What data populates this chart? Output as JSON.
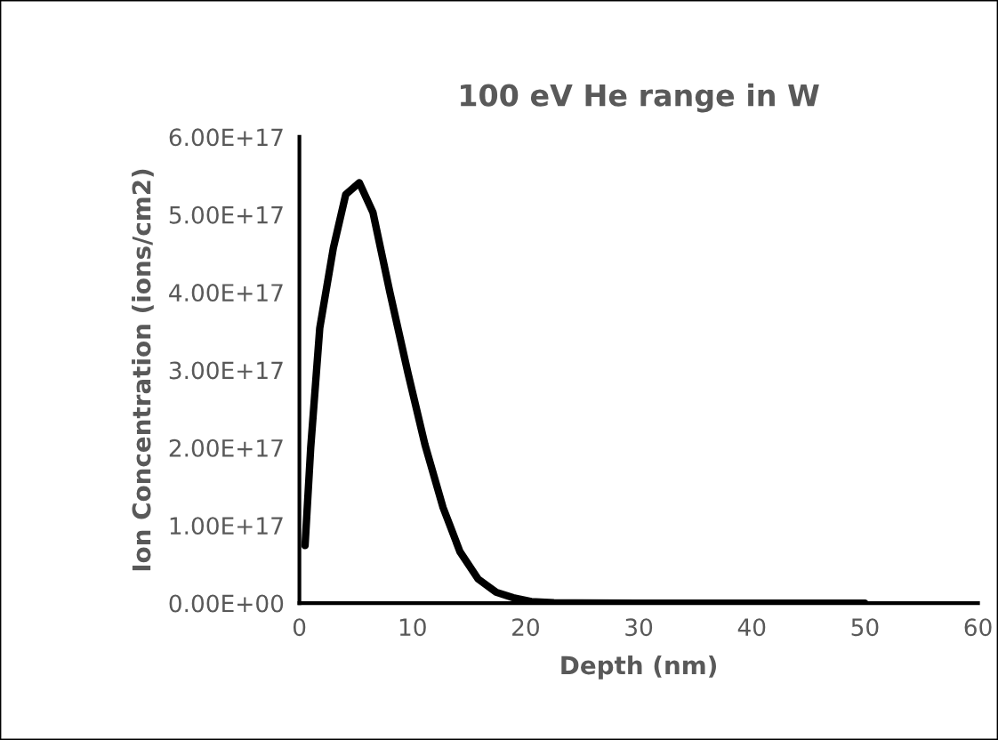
{
  "chart_data": {
    "type": "line",
    "title": "100 eV He range in W",
    "xlabel": "Depth (nm)",
    "ylabel": "Ion Concentration (ions/cm2)",
    "series": [
      {
        "color": "#000000",
        "x": [
          0.5,
          1.0,
          1.8,
          3.0,
          4.1,
          5.3,
          6.5,
          8.0,
          9.6,
          11.1,
          12.7,
          14.2,
          15.8,
          17.4,
          18.9,
          20.5,
          22.5,
          24.4,
          30,
          40,
          50
        ],
        "values": [
          7.4e+16,
          2e+17,
          3.54e+17,
          4.57e+17,
          5.26e+17,
          5.41e+17,
          5.03e+17,
          4e+17,
          2.96e+17,
          2.04e+17,
          1.23e+17,
          6.6e+16,
          3.1e+16,
          1.4e+16,
          7000000000000000.0,
          2000000000000000.0,
          500000000000000.0,
          300000000000000.0,
          0,
          0,
          0
        ]
      }
    ],
    "xlim": [
      0,
      60
    ],
    "xticks": [
      0,
      10,
      20,
      30,
      40,
      50,
      60
    ],
    "ylim": [
      0,
      6e+17
    ],
    "yticks": [
      {
        "value": 0,
        "label": "0.00E+00"
      },
      {
        "value": 1e+17,
        "label": "1.00E+17"
      },
      {
        "value": 2e+17,
        "label": "2.00E+17"
      },
      {
        "value": 3e+17,
        "label": "3.00E+17"
      },
      {
        "value": 4e+17,
        "label": "4.00E+17"
      },
      {
        "value": 5e+17,
        "label": "5.00E+17"
      },
      {
        "value": 6e+17,
        "label": "6.00E+17"
      }
    ],
    "grid": false,
    "legend": false,
    "marker": "none",
    "line_style": "solid"
  }
}
